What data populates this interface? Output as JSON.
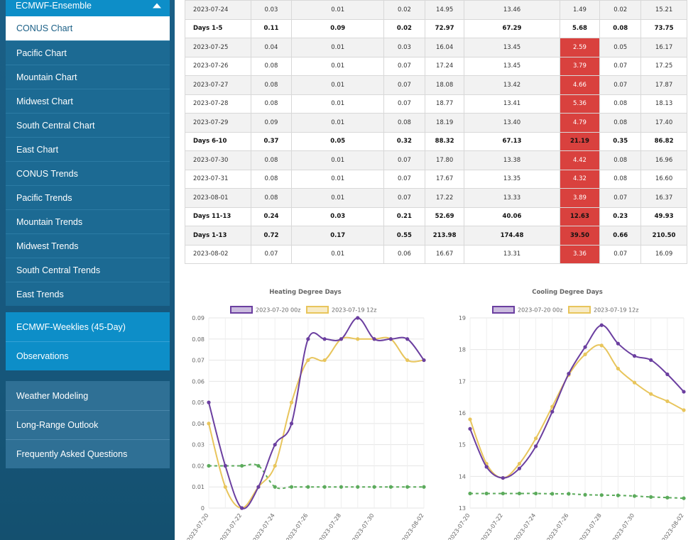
{
  "sidebar": {
    "section_title": "ECMWF-Ensemble",
    "items": [
      {
        "label": "CONUS Chart",
        "active": true
      },
      {
        "label": "Pacific Chart"
      },
      {
        "label": "Mountain Chart"
      },
      {
        "label": "Midwest Chart"
      },
      {
        "label": "South Central Chart"
      },
      {
        "label": "East Chart"
      },
      {
        "label": "CONUS Trends"
      },
      {
        "label": "Pacific Trends"
      },
      {
        "label": "Mountain Trends"
      },
      {
        "label": "Midwest Trends"
      },
      {
        "label": "South Central Trends"
      },
      {
        "label": "East Trends"
      }
    ],
    "weeklies": "ECMWF-Weeklies (45-Day)",
    "observations": "Observations",
    "links": [
      "Weather Modeling",
      "Long-Range Outlook",
      "Frequently Asked Questions"
    ]
  },
  "table": {
    "rows": [
      {
        "c": [
          "2023-07-24",
          "0.03",
          "0.01",
          "0.02",
          "14.95",
          "13.46",
          "1.49",
          "0.02",
          "15.21"
        ],
        "bold": false
      },
      {
        "c": [
          "Days 1-5",
          "0.11",
          "0.09",
          "0.02",
          "72.97",
          "67.29",
          "5.68",
          "0.08",
          "73.75"
        ],
        "bold": true
      },
      {
        "c": [
          "2023-07-25",
          "0.04",
          "0.01",
          "0.03",
          "16.04",
          "13.45",
          "2.59",
          "0.05",
          "16.17"
        ],
        "bold": false,
        "red": true
      },
      {
        "c": [
          "2023-07-26",
          "0.08",
          "0.01",
          "0.07",
          "17.24",
          "13.45",
          "3.79",
          "0.07",
          "17.25"
        ],
        "bold": false,
        "red": true
      },
      {
        "c": [
          "2023-07-27",
          "0.08",
          "0.01",
          "0.07",
          "18.08",
          "13.42",
          "4.66",
          "0.07",
          "17.87"
        ],
        "bold": false,
        "red": true
      },
      {
        "c": [
          "2023-07-28",
          "0.08",
          "0.01",
          "0.07",
          "18.77",
          "13.41",
          "5.36",
          "0.08",
          "18.13"
        ],
        "bold": false,
        "red": true
      },
      {
        "c": [
          "2023-07-29",
          "0.09",
          "0.01",
          "0.08",
          "18.19",
          "13.40",
          "4.79",
          "0.08",
          "17.40"
        ],
        "bold": false,
        "red": true
      },
      {
        "c": [
          "Days 6-10",
          "0.37",
          "0.05",
          "0.32",
          "88.32",
          "67.13",
          "21.19",
          "0.35",
          "86.82"
        ],
        "bold": true,
        "red": true
      },
      {
        "c": [
          "2023-07-30",
          "0.08",
          "0.01",
          "0.07",
          "17.80",
          "13.38",
          "4.42",
          "0.08",
          "16.96"
        ],
        "bold": false,
        "red": true
      },
      {
        "c": [
          "2023-07-31",
          "0.08",
          "0.01",
          "0.07",
          "17.67",
          "13.35",
          "4.32",
          "0.08",
          "16.60"
        ],
        "bold": false,
        "red": true
      },
      {
        "c": [
          "2023-08-01",
          "0.08",
          "0.01",
          "0.07",
          "17.22",
          "13.33",
          "3.89",
          "0.07",
          "16.37"
        ],
        "bold": false,
        "red": true
      },
      {
        "c": [
          "Days 11-13",
          "0.24",
          "0.03",
          "0.21",
          "52.69",
          "40.06",
          "12.63",
          "0.23",
          "49.93"
        ],
        "bold": true,
        "red": true
      },
      {
        "c": [
          "Days 1-13",
          "0.72",
          "0.17",
          "0.55",
          "213.98",
          "174.48",
          "39.50",
          "0.66",
          "210.50"
        ],
        "bold": true,
        "red": true
      },
      {
        "c": [
          "2023-08-02",
          "0.07",
          "0.01",
          "0.06",
          "16.67",
          "13.31",
          "3.36",
          "0.07",
          "16.09"
        ],
        "bold": false,
        "red": true
      }
    ]
  },
  "chart_data": [
    {
      "type": "line",
      "title": "Heating Degree Days",
      "x": [
        "2023-07-20",
        "2023-07-21",
        "2023-07-22",
        "2023-07-23",
        "2023-07-24",
        "2023-07-25",
        "2023-07-26",
        "2023-07-27",
        "2023-07-28",
        "2023-07-29",
        "2023-07-30",
        "2023-07-31",
        "2023-08-01",
        "2023-08-02"
      ],
      "xticks": [
        "2023-07-20",
        "2023-07-22",
        "2023-07-24",
        "2023-07-26",
        "2023-07-28",
        "2023-07-30",
        "2023-08-02"
      ],
      "ylim": [
        0,
        0.09
      ],
      "yticks": [
        "0",
        "0.01",
        "0.02",
        "0.03",
        "0.04",
        "0.05",
        "0.06",
        "0.07",
        "0.08",
        "0.09"
      ],
      "series": [
        {
          "name": "2023-07-20 00z",
          "color": "#6b3fa0",
          "values": [
            0.05,
            0.02,
            0.0,
            0.01,
            0.03,
            0.04,
            0.08,
            0.08,
            0.08,
            0.09,
            0.08,
            0.08,
            0.08,
            0.07
          ]
        },
        {
          "name": "2023-07-19 12z",
          "color": "#e8c55c",
          "values": [
            0.04,
            0.01,
            0.0,
            0.01,
            0.02,
            0.05,
            0.07,
            0.07,
            0.08,
            0.08,
            0.08,
            0.08,
            0.07,
            0.07
          ]
        },
        {
          "color": "#5cab5c",
          "dashed": true,
          "values": [
            0.02,
            0.02,
            0.02,
            0.02,
            0.01,
            0.01,
            0.01,
            0.01,
            0.01,
            0.01,
            0.01,
            0.01,
            0.01,
            0.01
          ]
        }
      ],
      "legend": "top"
    },
    {
      "type": "line",
      "title": "Cooling Degree Days",
      "x": [
        "2023-07-20",
        "2023-07-21",
        "2023-07-22",
        "2023-07-23",
        "2023-07-24",
        "2023-07-25",
        "2023-07-26",
        "2023-07-27",
        "2023-07-28",
        "2023-07-29",
        "2023-07-30",
        "2023-07-31",
        "2023-08-01",
        "2023-08-02"
      ],
      "xticks": [
        "2023-07-20",
        "2023-07-22",
        "2023-07-24",
        "2023-07-26",
        "2023-07-28",
        "2023-07-30",
        "2023-08-02"
      ],
      "ylim": [
        13,
        19
      ],
      "yticks": [
        "13",
        "14",
        "15",
        "16",
        "17",
        "18",
        "19"
      ],
      "series": [
        {
          "name": "2023-07-20 00z",
          "color": "#6b3fa0",
          "values": [
            15.5,
            14.3,
            13.95,
            14.25,
            14.95,
            16.04,
            17.24,
            18.08,
            18.77,
            18.19,
            17.8,
            17.67,
            17.22,
            16.67
          ]
        },
        {
          "name": "2023-07-19 12z",
          "color": "#e8c55c",
          "values": [
            15.8,
            14.4,
            13.95,
            14.4,
            15.2,
            16.2,
            17.2,
            17.85,
            18.13,
            17.4,
            16.96,
            16.6,
            16.37,
            16.09
          ]
        },
        {
          "color": "#5cab5c",
          "dashed": true,
          "values": [
            13.46,
            13.46,
            13.46,
            13.46,
            13.46,
            13.45,
            13.45,
            13.42,
            13.41,
            13.4,
            13.38,
            13.35,
            13.33,
            13.31
          ]
        }
      ],
      "legend": "top"
    }
  ]
}
